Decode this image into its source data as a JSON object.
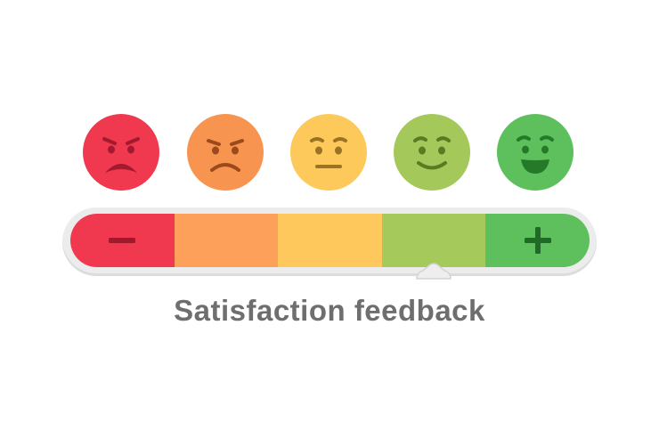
{
  "caption": "Satisfaction feedback",
  "faces": [
    {
      "icon": "very-angry-face-icon",
      "color": "#f0394f",
      "feature_color": "#a31a2e"
    },
    {
      "icon": "angry-face-icon",
      "color": "#f7944f",
      "feature_color": "#9a4a1c"
    },
    {
      "icon": "neutral-face-icon",
      "color": "#fdc95a",
      "feature_color": "#9c7322"
    },
    {
      "icon": "smiling-face-icon",
      "color": "#a5c85a",
      "feature_color": "#5b7a22"
    },
    {
      "icon": "happy-face-icon",
      "color": "#5ec05c",
      "feature_color": "#257a2a"
    }
  ],
  "scale": {
    "segments": [
      {
        "color": "#f0394f",
        "symbol": "minus-icon"
      },
      {
        "color": "#fca05a",
        "symbol": ""
      },
      {
        "color": "#fec85c",
        "symbol": ""
      },
      {
        "color": "#a6c95c",
        "symbol": ""
      },
      {
        "color": "#5ec05c",
        "symbol": "plus-icon"
      }
    ],
    "selected_level": 0.7
  }
}
